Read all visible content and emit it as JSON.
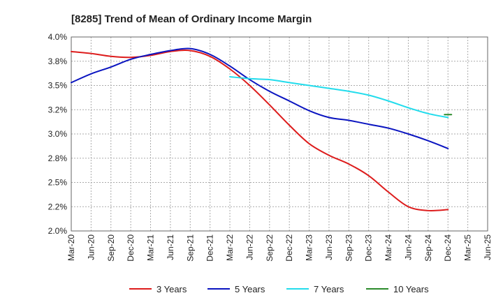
{
  "chart_data": {
    "type": "line",
    "title": "[8285]  Trend of Mean of Ordinary Income Margin",
    "xlabel": "",
    "ylabel": "",
    "x": [
      "Mar-20",
      "Jun-20",
      "Sep-20",
      "Dec-20",
      "Mar-21",
      "Jun-21",
      "Sep-21",
      "Dec-21",
      "Mar-22",
      "Jun-22",
      "Sep-22",
      "Dec-22",
      "Mar-23",
      "Jun-23",
      "Sep-23",
      "Dec-23",
      "Mar-24",
      "Jun-24",
      "Sep-24",
      "Dec-24",
      "Mar-25",
      "Jun-25"
    ],
    "ylim": [
      2.0,
      4.0
    ],
    "yticks": [
      {
        "value": 2.0,
        "label": "2.0%"
      },
      {
        "value": 2.25,
        "label": "2.2%"
      },
      {
        "value": 2.5,
        "label": "2.5%"
      },
      {
        "value": 2.75,
        "label": "2.8%"
      },
      {
        "value": 3.0,
        "label": "3.0%"
      },
      {
        "value": 3.25,
        "label": "3.2%"
      },
      {
        "value": 3.5,
        "label": "3.5%"
      },
      {
        "value": 3.75,
        "label": "3.8%"
      },
      {
        "value": 4.0,
        "label": "4.0%"
      }
    ],
    "grid": true,
    "legend_position": "bottom",
    "series": [
      {
        "name": "3 Years",
        "color": "#dd1c1c",
        "values": [
          3.85,
          3.83,
          3.8,
          3.79,
          3.81,
          3.85,
          3.86,
          3.8,
          3.67,
          3.5,
          3.3,
          3.09,
          2.9,
          2.78,
          2.69,
          2.57,
          2.4,
          2.25,
          2.21,
          2.22,
          null,
          null
        ]
      },
      {
        "name": "5 Years",
        "color": "#0a14c0",
        "values": [
          3.53,
          3.62,
          3.69,
          3.77,
          3.82,
          3.86,
          3.88,
          3.82,
          3.7,
          3.56,
          3.44,
          3.34,
          3.24,
          3.17,
          3.14,
          3.1,
          3.06,
          3.0,
          2.93,
          2.85,
          null,
          null
        ]
      },
      {
        "name": "7 Years",
        "color": "#22dcec",
        "values": [
          null,
          null,
          null,
          null,
          null,
          null,
          null,
          null,
          3.59,
          3.57,
          3.56,
          3.53,
          3.5,
          3.47,
          3.44,
          3.4,
          3.34,
          3.27,
          3.21,
          3.17,
          null,
          null
        ]
      },
      {
        "name": "10 Years",
        "color": "#2a8a2a",
        "values": [
          null,
          null,
          null,
          null,
          null,
          null,
          null,
          null,
          null,
          null,
          null,
          null,
          null,
          null,
          null,
          null,
          null,
          null,
          null,
          3.2,
          null,
          null
        ]
      }
    ]
  }
}
